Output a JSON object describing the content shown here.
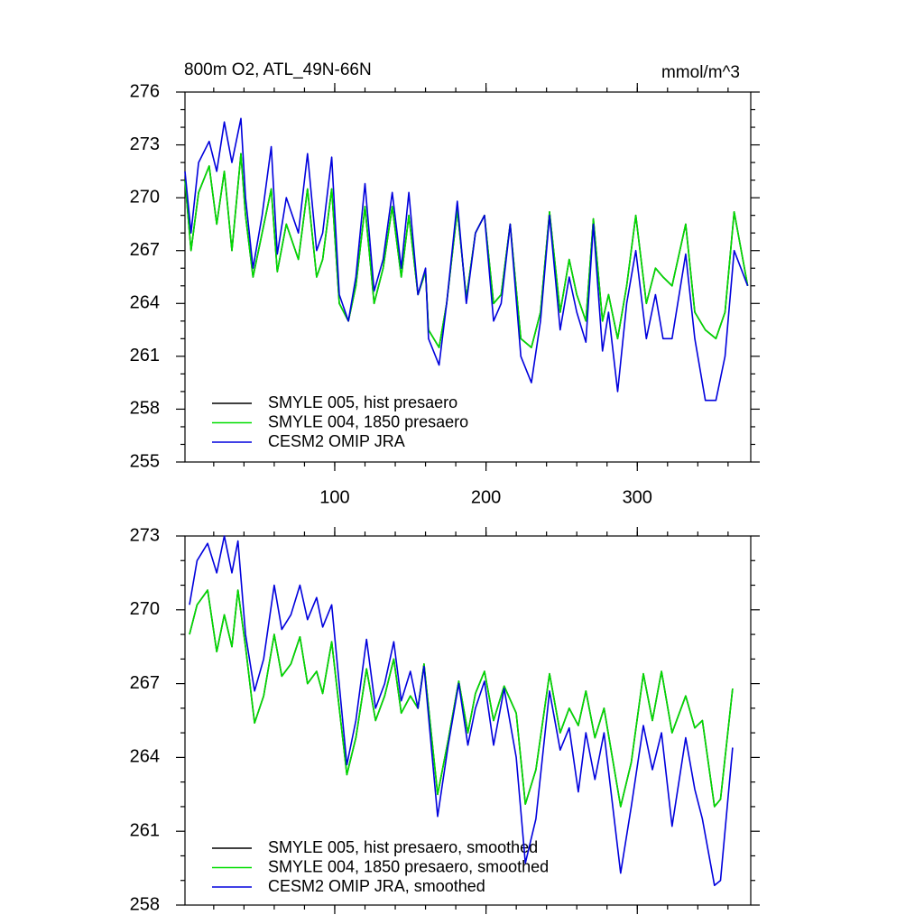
{
  "chart_data": [
    {
      "type": "line",
      "title": "800m O2, ATL_49N-66N",
      "units": "mmol/m^3",
      "xlim": [
        1,
        375
      ],
      "xticks": [
        100,
        200,
        300
      ],
      "ylim": [
        255,
        276
      ],
      "yticks": [
        255,
        258,
        261,
        264,
        267,
        270,
        273,
        276
      ],
      "x": [
        1,
        5,
        10,
        17,
        22,
        27,
        32,
        38,
        41,
        46,
        52,
        58,
        62,
        68,
        76,
        82,
        88,
        92,
        98,
        103,
        109,
        114,
        120,
        126,
        132,
        138,
        144,
        149,
        155,
        160,
        162,
        169,
        174,
        181,
        187,
        193,
        199,
        205,
        210,
        216,
        223,
        230,
        236,
        242,
        249,
        255,
        260,
        266,
        271,
        277,
        281,
        287,
        293,
        299,
        306,
        312,
        317,
        323,
        332,
        338,
        345,
        352,
        358,
        364,
        373
      ],
      "series": [
        {
          "name": "SMYLE 005, hist presaero",
          "color": "#000000",
          "values": [
            271,
            267,
            270.3,
            271.8,
            268.5,
            271.5,
            267,
            272.5,
            269,
            265.5,
            268,
            270.5,
            265.8,
            268.5,
            266.5,
            270.5,
            265.5,
            266.5,
            270.5,
            264,
            263,
            265,
            269.5,
            264,
            266,
            269.5,
            265.5,
            269,
            264.5,
            265.8,
            262.5,
            261.5,
            264,
            269.3,
            264.3,
            268,
            269,
            264,
            264.5,
            268.5,
            262,
            261.5,
            263.5,
            269.2,
            263.5,
            266.5,
            264.5,
            263,
            268.8,
            263,
            264.5,
            262,
            265,
            269,
            264,
            266,
            265.5,
            265,
            268.5,
            263.5,
            262.5,
            262,
            263.5,
            269.2,
            265
          ]
        },
        {
          "name": "SMYLE 004, 1850 presaero",
          "color": "#00dd00",
          "values": [
            271,
            267,
            270.3,
            271.8,
            268.5,
            271.5,
            267,
            272.5,
            269,
            265.5,
            268,
            270.5,
            265.8,
            268.5,
            266.5,
            270.5,
            265.5,
            266.5,
            270.5,
            264,
            263,
            265,
            269.5,
            264,
            266,
            269.5,
            265.5,
            269,
            264.5,
            265.8,
            262.5,
            261.5,
            264,
            269.3,
            264.3,
            268,
            269,
            264,
            264.5,
            268.5,
            262,
            261.5,
            263.5,
            269.2,
            263.5,
            266.5,
            264.5,
            263,
            268.8,
            263,
            264.5,
            262,
            265,
            269,
            264,
            266,
            265.5,
            265,
            268.5,
            263.5,
            262.5,
            262,
            263.5,
            269.2,
            265
          ]
        },
        {
          "name": "CESM2 OMIP JRA",
          "color": "#0000dd",
          "values": [
            271.5,
            268,
            272,
            273.2,
            271.5,
            274.3,
            272,
            274.5,
            270,
            266,
            269,
            272.9,
            266.8,
            270,
            268,
            272.5,
            267,
            268,
            272.3,
            264.5,
            263,
            265.5,
            270.8,
            264.7,
            266.5,
            270.3,
            266,
            270.3,
            264.5,
            266,
            262,
            260.5,
            264,
            269.8,
            264,
            268,
            269,
            263,
            264,
            268.5,
            261,
            259.5,
            263,
            269,
            262.5,
            265.5,
            263.5,
            261.8,
            268.5,
            261.3,
            263.5,
            259,
            264,
            267,
            262,
            264.5,
            262,
            262,
            266.8,
            262,
            258.5,
            258.5,
            261,
            267,
            265
          ]
        }
      ]
    },
    {
      "type": "line",
      "xlim": [
        1,
        375
      ],
      "xticks": [
        100,
        200,
        300
      ],
      "ylim": [
        258,
        273
      ],
      "yticks": [
        258,
        261,
        264,
        267,
        270,
        273
      ],
      "x": [
        4,
        9,
        16,
        22,
        27,
        32,
        36,
        41,
        47,
        53,
        60,
        65,
        71,
        77,
        82,
        88,
        92,
        98,
        108,
        114,
        121,
        127,
        133,
        139,
        144,
        150,
        155,
        159,
        168,
        175,
        182,
        188,
        193,
        199,
        205,
        212,
        220,
        226,
        233,
        242,
        249,
        255,
        261,
        266,
        272,
        278,
        289,
        296,
        304,
        310,
        316,
        323,
        332,
        338,
        343,
        351,
        355,
        363
      ],
      "series": [
        {
          "name": "SMYLE 005, hist presaero, smoothed",
          "color": "#000000",
          "values": [
            269,
            270.2,
            270.8,
            268.3,
            269.8,
            268.5,
            270.8,
            268.5,
            265.4,
            266.5,
            269,
            267.3,
            267.8,
            268.9,
            267,
            267.5,
            266.6,
            268.7,
            263.3,
            264.8,
            267.6,
            265.5,
            266.5,
            268,
            265.8,
            266.5,
            266,
            267.8,
            262.5,
            264.7,
            267.1,
            265,
            266.6,
            267.5,
            265.5,
            266.9,
            265.8,
            262.1,
            263.5,
            267.4,
            265,
            266,
            265.3,
            266.7,
            264.8,
            266,
            262,
            263.8,
            267.4,
            265.5,
            267.5,
            265,
            266.5,
            265.2,
            265.5,
            262,
            262.3,
            266.8
          ]
        },
        {
          "name": "SMYLE 004, 1850 presaero, smoothed",
          "color": "#00dd00",
          "values": [
            269,
            270.2,
            270.8,
            268.3,
            269.8,
            268.5,
            270.8,
            268.5,
            265.4,
            266.5,
            269,
            267.3,
            267.8,
            268.9,
            267,
            267.5,
            266.6,
            268.7,
            263.3,
            264.8,
            267.6,
            265.5,
            266.5,
            268,
            265.8,
            266.5,
            266,
            267.8,
            262.5,
            264.7,
            267.1,
            265,
            266.6,
            267.5,
            265.5,
            266.9,
            265.8,
            262.1,
            263.5,
            267.4,
            265,
            266,
            265.3,
            266.7,
            264.8,
            266,
            262,
            263.8,
            267.4,
            265.5,
            267.5,
            265,
            266.5,
            265.2,
            265.5,
            262,
            262.3,
            266.8
          ]
        },
        {
          "name": "CESM2 OMIP JRA, smoothed",
          "color": "#0000dd",
          "values": [
            270.2,
            272,
            272.7,
            271.5,
            273,
            271.5,
            272.8,
            269,
            266.7,
            268,
            271,
            269.2,
            269.8,
            271,
            269.6,
            270.5,
            269.3,
            270.2,
            263.7,
            265.5,
            268.8,
            266,
            267,
            268.7,
            266.3,
            267.5,
            266,
            267.7,
            261.6,
            264.5,
            267,
            264.5,
            266,
            267.1,
            264.5,
            266.8,
            264,
            259.7,
            261.5,
            266.7,
            264.3,
            265.2,
            262.6,
            265,
            263.1,
            265,
            259.3,
            262,
            265.3,
            263.5,
            265,
            261.2,
            264.8,
            262.7,
            261.5,
            258.8,
            259,
            264.4
          ]
        }
      ]
    }
  ]
}
